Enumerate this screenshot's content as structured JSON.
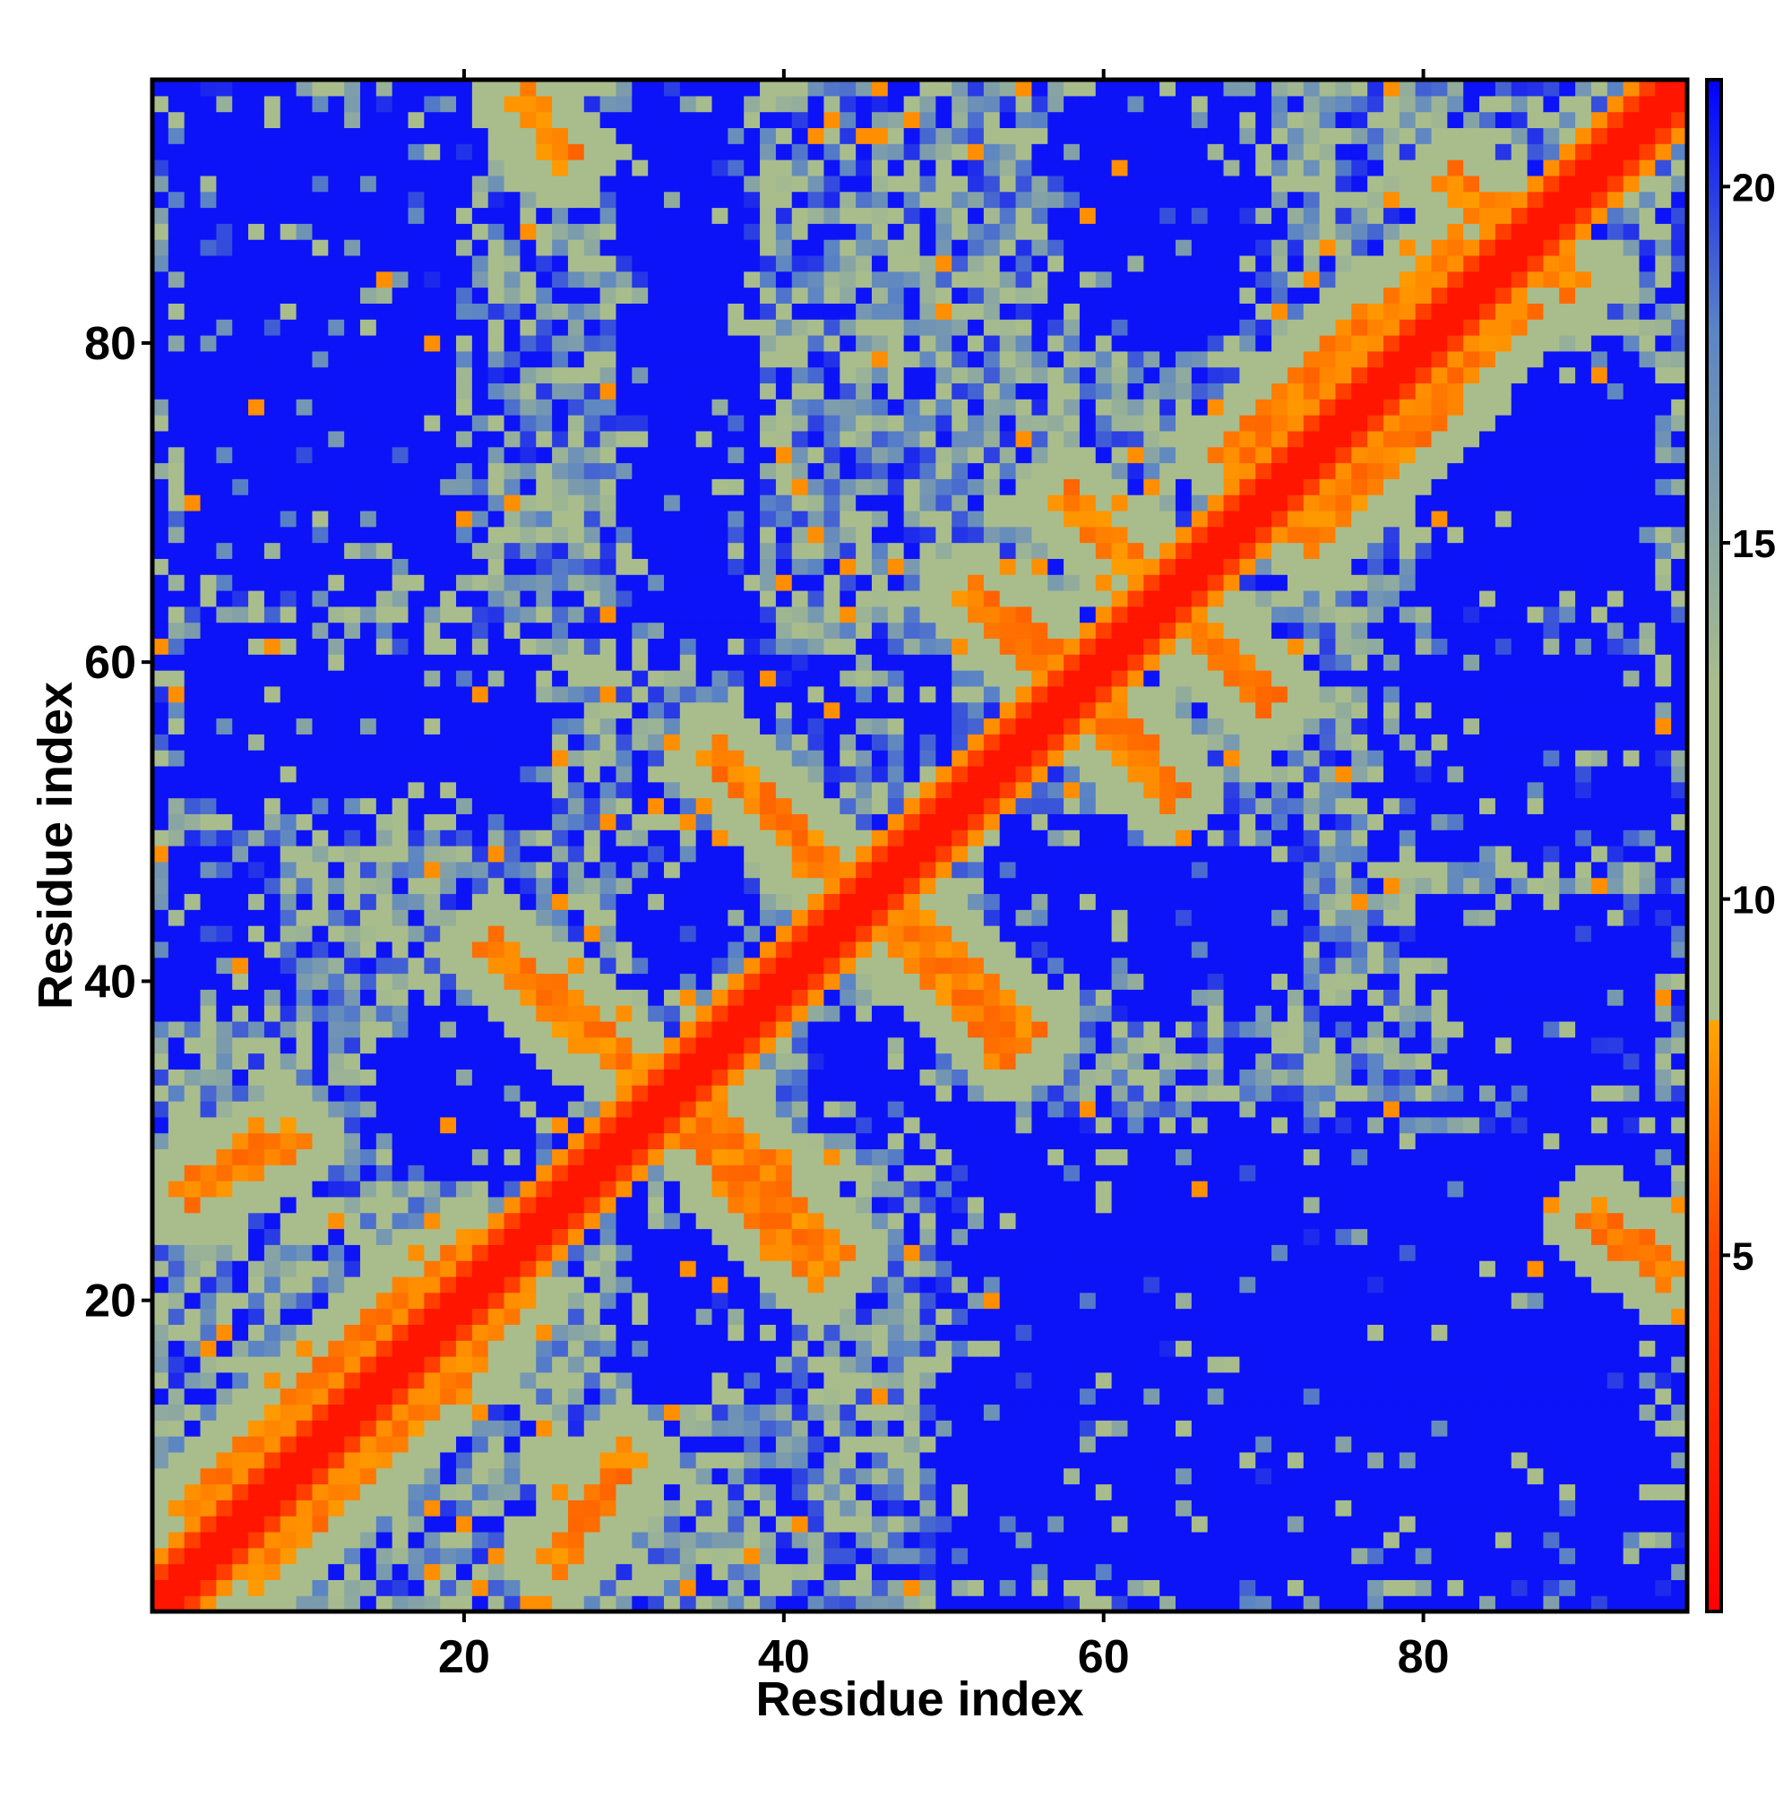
{
  "chart_data": {
    "type": "heatmap",
    "title": "",
    "xlabel": "Residue index",
    "ylabel": "Residue index",
    "n_residues": 96,
    "xlim": [
      0.5,
      96.5
    ],
    "ylim": [
      0.5,
      96.5
    ],
    "x_ticks": [
      20,
      40,
      60,
      80
    ],
    "y_ticks": [
      20,
      40,
      60,
      80
    ],
    "x_tick_labels": [
      "20",
      "40",
      "60",
      "80"
    ],
    "y_tick_labels": [
      "20",
      "40",
      "60",
      "80"
    ],
    "colorbar": {
      "range": [
        0,
        21.5
      ],
      "ticks": [
        5,
        10,
        15,
        20
      ],
      "tick_labels": [
        "5",
        "10",
        "15",
        "20"
      ],
      "color_stops": [
        {
          "value": 0,
          "color": "#ff0000"
        },
        {
          "value": 5,
          "color": "#ff4500"
        },
        {
          "value": 8.3,
          "color": "#ffa500"
        },
        {
          "value": 8.3,
          "color": "#a9bd8c"
        },
        {
          "value": 13,
          "color": "#a9bd8c"
        },
        {
          "value": 18,
          "color": "#5b84c4"
        },
        {
          "value": 21.5,
          "color": "#0000ff"
        }
      ]
    },
    "colors": {
      "contact": "#ff0000",
      "near": "#ffa500",
      "mid": "#a9bd8c",
      "far_mid": "#6f94b8",
      "far": "#0000ff"
    },
    "contact_segments": [
      {
        "type": "diagonal",
        "from": [
          1,
          1
        ],
        "to": [
          96,
          96
        ],
        "distance": 1.5,
        "width": 2.2
      },
      {
        "type": "segment",
        "from": [
          3,
          7
        ],
        "to": [
          20,
          23
        ],
        "distance": 7,
        "width": 1.3
      },
      {
        "type": "segment",
        "from": [
          7,
          3
        ],
        "to": [
          23,
          20
        ],
        "distance": 7,
        "width": 1.3
      },
      {
        "type": "segment",
        "from": [
          22,
          42
        ],
        "to": [
          31,
          34
        ],
        "distance": 7,
        "width": 1.2
      },
      {
        "type": "segment",
        "from": [
          42,
          22
        ],
        "to": [
          34,
          31
        ],
        "distance": 7,
        "width": 1.2
      },
      {
        "type": "segment",
        "from": [
          36,
          54
        ],
        "to": [
          45,
          45
        ],
        "distance": 7,
        "width": 1.3
      },
      {
        "type": "segment",
        "from": [
          54,
          36
        ],
        "to": [
          45,
          45
        ],
        "distance": 7,
        "width": 1.3
      },
      {
        "type": "segment",
        "from": [
          48,
          44
        ],
        "to": [
          55,
          37
        ],
        "distance": 7,
        "width": 1.1
      },
      {
        "type": "segment",
        "from": [
          36,
          31
        ],
        "to": [
          43,
          23
        ],
        "distance": 7,
        "width": 1.1
      },
      {
        "type": "segment",
        "from": [
          52,
          64
        ],
        "to": [
          60,
          57
        ],
        "distance": 7,
        "width": 1.3
      },
      {
        "type": "segment",
        "from": [
          64,
          52
        ],
        "to": [
          57,
          60
        ],
        "distance": 7,
        "width": 1.3
      },
      {
        "type": "segment",
        "from": [
          58,
          70
        ],
        "to": [
          64,
          64
        ],
        "distance": 7,
        "width": 1.3
      },
      {
        "type": "segment",
        "from": [
          70,
          58
        ],
        "to": [
          64,
          64
        ],
        "distance": 7,
        "width": 1.3
      },
      {
        "type": "segment",
        "from": [
          64,
          64
        ],
        "to": [
          70,
          58
        ],
        "distance": 7,
        "width": 1.2
      },
      {
        "type": "segment",
        "from": [
          68,
          73
        ],
        "to": [
          82,
          86
        ],
        "distance": 7,
        "width": 1.2
      },
      {
        "type": "segment",
        "from": [
          73,
          68
        ],
        "to": [
          86,
          82
        ],
        "distance": 7,
        "width": 1.2
      },
      {
        "type": "segment",
        "from": [
          82,
          90
        ],
        "to": [
          89,
          84
        ],
        "distance": 7,
        "width": 1.2
      },
      {
        "type": "segment",
        "from": [
          91,
          25
        ],
        "to": [
          95,
          22
        ],
        "distance": 7,
        "width": 1.0
      },
      {
        "type": "segment",
        "from": [
          24,
          95
        ],
        "to": [
          26,
          92
        ],
        "distance": 7,
        "width": 1.0
      },
      {
        "type": "segment",
        "from": [
          26,
          4
        ],
        "to": [
          30,
          10
        ],
        "distance": 7,
        "width": 1.0
      },
      {
        "type": "segment",
        "from": [
          3,
          27
        ],
        "to": [
          9,
          30
        ],
        "distance": 7,
        "width": 1.0
      }
    ],
    "far_regions": [
      {
        "x": [
          1,
          21
        ],
        "y": [
          64,
          96
        ],
        "distance": 21
      },
      {
        "x": [
          1,
          25
        ],
        "y": [
          50,
          62
        ],
        "distance": 21
      },
      {
        "x": [
          14,
          26
        ],
        "y": [
          28,
          38
        ],
        "distance": 21
      },
      {
        "x": [
          30,
          40
        ],
        "y": [
          14,
          26
        ],
        "distance": 21
      },
      {
        "x": [
          30,
          38
        ],
        "y": [
          40,
          48
        ],
        "distance": 21
      },
      {
        "x": [
          42,
          50
        ],
        "y": [
          30,
          38
        ],
        "distance": 21
      },
      {
        "x": [
          38,
          50
        ],
        "y": [
          55,
          60
        ],
        "distance": 21
      },
      {
        "x": [
          50,
          96
        ],
        "y": [
          1,
          32
        ],
        "distance": 21
      },
      {
        "x": [
          53,
          72
        ],
        "y": [
          38,
          50
        ],
        "distance": 21
      },
      {
        "x": [
          77,
          96
        ],
        "y": [
          48,
          62
        ],
        "distance": 21
      },
      {
        "x": [
          80,
          96
        ],
        "y": [
          32,
          45
        ],
        "distance": 21
      },
      {
        "x": [
          56,
          70
        ],
        "y": [
          80,
          96
        ],
        "distance": 21
      },
      {
        "x": [
          30,
          38
        ],
        "y": [
          60,
          96
        ],
        "distance": 21
      },
      {
        "x": [
          80,
          96
        ],
        "y": [
          62,
          80
        ],
        "distance": 21
      },
      {
        "x": [
          1,
          8
        ],
        "y": [
          38,
          48
        ],
        "distance": 21
      }
    ]
  }
}
